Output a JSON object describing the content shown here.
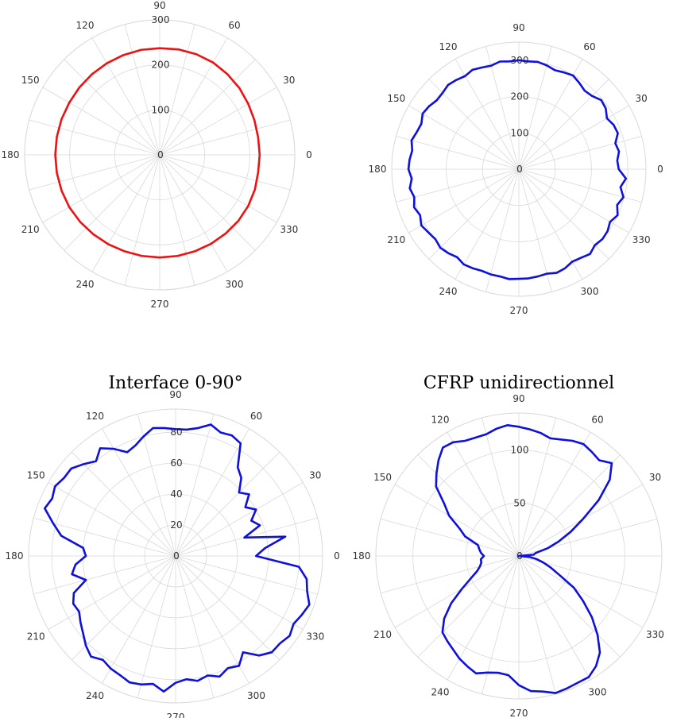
{
  "chart_data": [
    {
      "type": "line",
      "subtype": "polar",
      "title": "",
      "angle_unit": "degrees",
      "angular_ticks": [
        "0",
        "30",
        "60",
        "90",
        "120",
        "150",
        "180",
        "210",
        "240",
        "270",
        "300",
        "330"
      ],
      "radial_ticks": [
        "0",
        "100",
        "200",
        "300"
      ],
      "rlim": [
        0,
        300
      ],
      "grid": true,
      "series": [
        {
          "color": "#ee1111",
          "theta": [
            0,
            10,
            20,
            30,
            40,
            50,
            60,
            70,
            80,
            90,
            100,
            110,
            120,
            130,
            140,
            150,
            160,
            170,
            180,
            190,
            200,
            210,
            220,
            230,
            240,
            250,
            260,
            270,
            280,
            290,
            300,
            310,
            320,
            330,
            340,
            350,
            360
          ],
          "r": [
            222,
            222,
            224,
            227,
            231,
            234,
            237,
            238,
            238,
            237,
            237,
            236,
            235,
            234,
            233,
            232,
            232,
            232,
            232,
            232,
            232,
            232,
            231,
            230,
            229,
            228,
            228,
            228,
            228,
            228,
            228,
            228,
            228,
            227,
            225,
            222,
            222
          ]
        }
      ]
    },
    {
      "type": "line",
      "subtype": "polar",
      "title": "",
      "angle_unit": "degrees",
      "angular_ticks": [
        "0",
        "30",
        "60",
        "90",
        "120",
        "150",
        "180",
        "210",
        "240",
        "270",
        "300",
        "330"
      ],
      "radial_ticks": [
        "0",
        "100",
        "200",
        "300"
      ],
      "rlim": [
        0,
        350
      ],
      "grid": true,
      "series": [
        {
          "color": "#1010dd",
          "theta": [
            0,
            5,
            10,
            15,
            20,
            25,
            30,
            35,
            40,
            45,
            50,
            55,
            60,
            65,
            70,
            75,
            80,
            85,
            90,
            95,
            100,
            105,
            110,
            115,
            120,
            125,
            130,
            135,
            140,
            145,
            150,
            155,
            160,
            165,
            170,
            175,
            180,
            185,
            190,
            195,
            200,
            205,
            210,
            215,
            220,
            225,
            230,
            235,
            240,
            245,
            250,
            255,
            260,
            265,
            270,
            275,
            280,
            285,
            290,
            295,
            300,
            305,
            310,
            315,
            320,
            325,
            330,
            335,
            340,
            345,
            350,
            355
          ],
          "r": [
            275,
            272,
            280,
            275,
            290,
            288,
            280,
            292,
            296,
            285,
            282,
            290,
            298,
            294,
            290,
            296,
            300,
            298,
            300,
            298,
            301,
            295,
            298,
            302,
            296,
            300,
            303,
            297,
            295,
            302,
            306,
            296,
            299,
            306,
            298,
            302,
            304,
            296,
            305,
            298,
            307,
            300,
            310,
            304,
            300,
            306,
            302,
            296,
            303,
            301,
            298,
            300,
            300,
            304,
            302,
            302,
            300,
            298,
            304,
            301,
            294,
            298,
            305,
            296,
            300,
            298,
            290,
            300,
            288,
            298,
            284,
            296
          ]
        }
      ]
    },
    {
      "type": "line",
      "subtype": "polar",
      "title": "Interface 0-90°",
      "angle_unit": "degrees",
      "angular_ticks": [
        "0",
        "30",
        "60",
        "90",
        "120",
        "150",
        "180",
        "210",
        "240",
        "270",
        "300",
        "330"
      ],
      "radial_ticks": [
        "0",
        "20",
        "40",
        "60",
        "80"
      ],
      "rlim": [
        0,
        95
      ],
      "grid": true,
      "series": [
        {
          "color": "#1010dd",
          "theta": [
            0,
            5,
            10,
            15,
            20,
            25,
            30,
            35,
            40,
            45,
            50,
            55,
            60,
            65,
            70,
            75,
            80,
            85,
            90,
            95,
            100,
            105,
            110,
            115,
            120,
            125,
            130,
            135,
            140,
            145,
            150,
            155,
            160,
            165,
            170,
            175,
            180,
            185,
            190,
            195,
            200,
            205,
            210,
            215,
            220,
            225,
            230,
            235,
            240,
            245,
            250,
            255,
            260,
            265,
            270,
            275,
            280,
            285,
            290,
            295,
            300,
            305,
            310,
            315,
            320,
            325,
            330,
            335,
            340,
            345,
            350,
            355
          ],
          "r": [
            52,
            58,
            72,
            46,
            58,
            54,
            60,
            55,
            62,
            58,
            66,
            70,
            84,
            86,
            85,
            88,
            84,
            82,
            82,
            83,
            84,
            80,
            76,
            74,
            80,
            85,
            80,
            84,
            88,
            88,
            90,
            88,
            90,
            82,
            75,
            60,
            58,
            65,
            68,
            60,
            70,
            73,
            72,
            75,
            78,
            82,
            85,
            82,
            84,
            85,
            87,
            86,
            84,
            88,
            82,
            80,
            82,
            80,
            83,
            80,
            82,
            76,
            84,
            88,
            88,
            90,
            88,
            90,
            92,
            88,
            86,
            80
          ]
        }
      ]
    },
    {
      "type": "line",
      "subtype": "polar",
      "title": "CFRP unidirectionnel",
      "angle_unit": "degrees",
      "angular_ticks": [
        "0",
        "30",
        "60",
        "90",
        "120",
        "150",
        "180",
        "210",
        "240",
        "270",
        "300",
        "330"
      ],
      "radial_ticks": [
        "0",
        "50",
        "100"
      ],
      "rlim": [
        0,
        135
      ],
      "grid": true,
      "series": [
        {
          "color": "#1010dd",
          "theta": [
            0,
            5,
            10,
            15,
            20,
            25,
            30,
            35,
            40,
            45,
            50,
            55,
            60,
            65,
            70,
            75,
            80,
            85,
            90,
            95,
            100,
            105,
            110,
            115,
            120,
            125,
            130,
            135,
            140,
            145,
            150,
            155,
            160,
            165,
            170,
            175,
            180,
            185,
            190,
            195,
            200,
            205,
            210,
            215,
            220,
            225,
            230,
            235,
            240,
            245,
            250,
            255,
            260,
            265,
            270,
            275,
            280,
            285,
            290,
            295,
            300,
            305,
            310,
            315,
            320,
            325,
            330,
            335,
            340,
            345,
            350,
            355
          ],
          "r": [
            0,
            14,
            16,
            28,
            40,
            54,
            70,
            92,
            112,
            124,
            118,
            120,
            122,
            120,
            117,
            115,
            118,
            120,
            122,
            124,
            122,
            119,
            119,
            120,
            124,
            125,
            118,
            110,
            102,
            86,
            76,
            62,
            54,
            40,
            38,
            36,
            33,
            36,
            36,
            38,
            42,
            50,
            62,
            78,
            92,
            102,
            105,
            108,
            112,
            115,
            118,
            114,
            112,
            113,
            122,
            128,
            130,
            134,
            133,
            132,
            132,
            127,
            119,
            105,
            90,
            74,
            60,
            42,
            32,
            24,
            17,
            10
          ]
        }
      ]
    }
  ]
}
